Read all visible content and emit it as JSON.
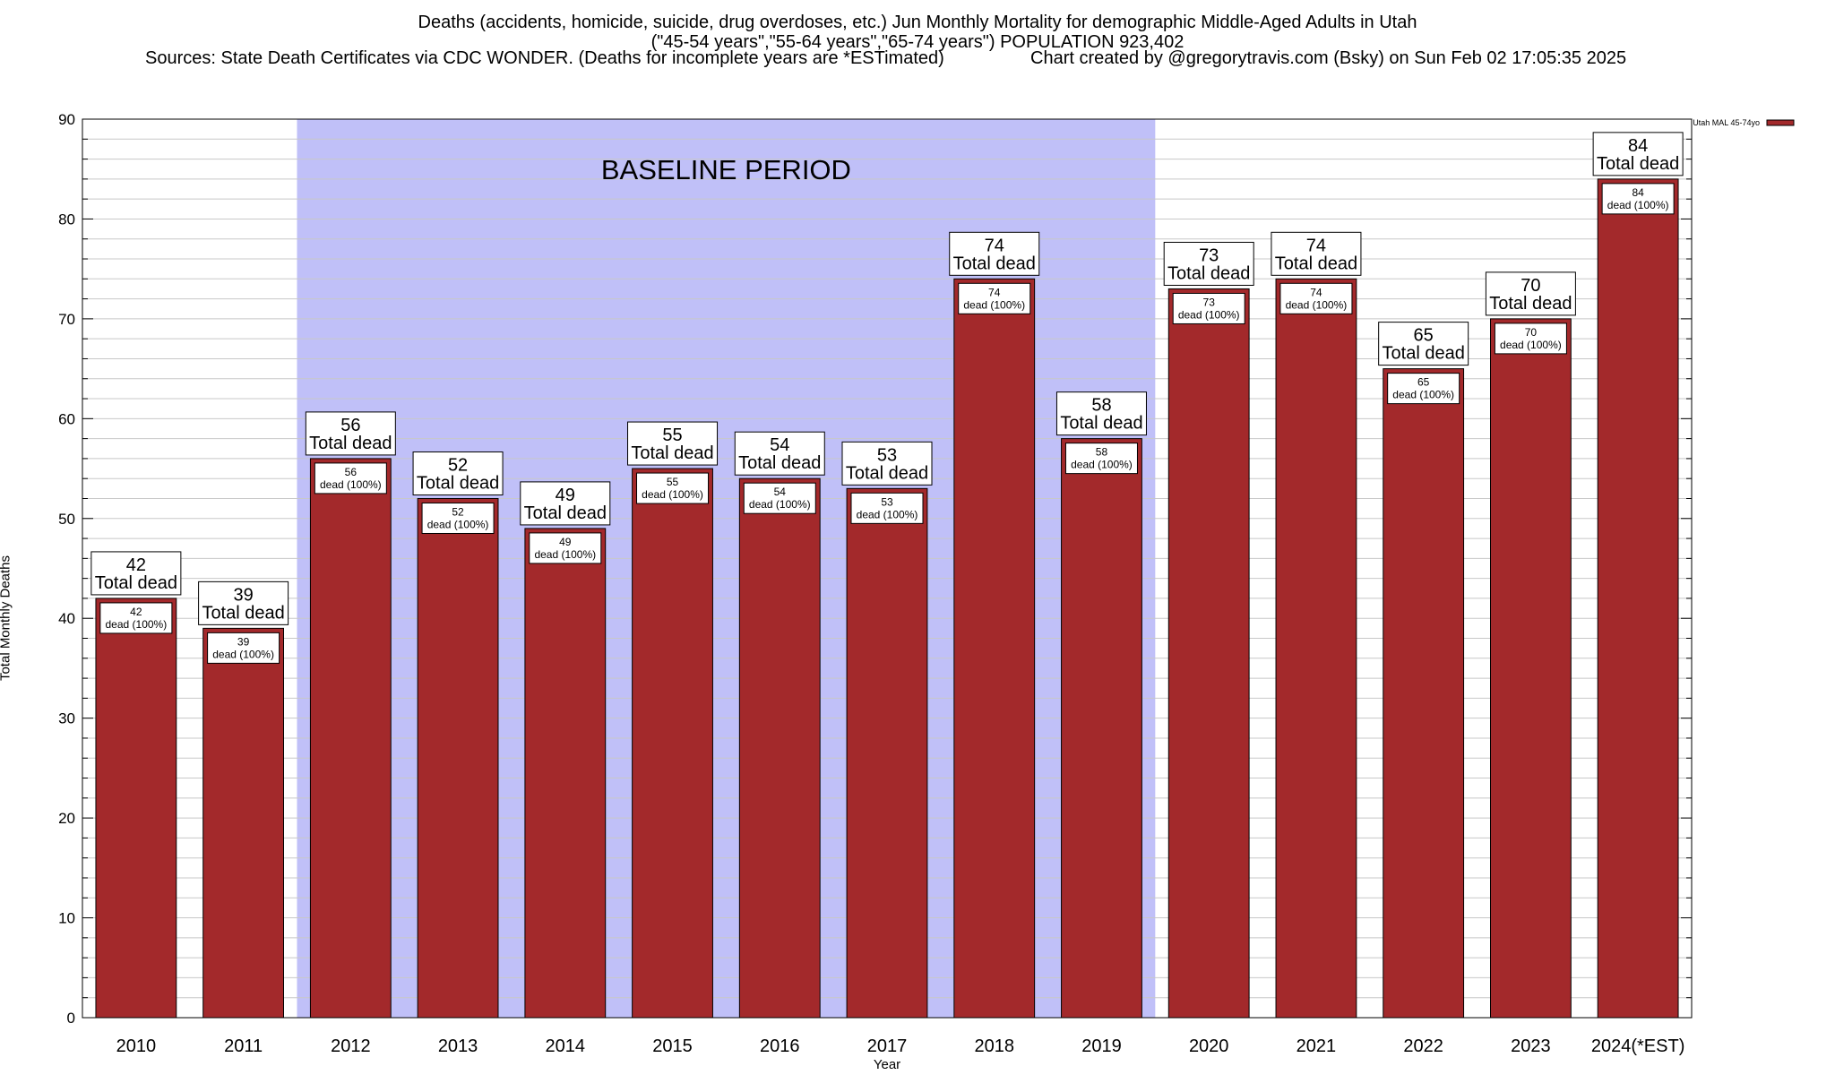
{
  "header": {
    "title_line1": "Deaths (accidents, homicide, suicide, drug overdoses, etc.) Jun Monthly Mortality for demographic Middle-Aged Adults in Utah",
    "title_line2": "(\"45-54 years\",\"55-64 years\",\"65-74 years\") POPULATION 923,402",
    "sources": "Sources: State Death Certificates via CDC WONDER. (Deaths for incomplete years are *ESTimated)",
    "credit": "Chart created by @gregorytravis.com (Bsky) on Sun Feb 02 17:05:35 2025"
  },
  "colors": {
    "bar_fill": "#a3292b",
    "bar_stroke": "#000000",
    "baseline_band": "#c0c0f8",
    "grid": "#c8c8c8"
  },
  "chart_data": {
    "type": "bar",
    "title": "Deaths (accidents, homicide, suicide, drug overdoses, etc.) Jun Monthly Mortality for demographic Middle-Aged Adults in Utah",
    "xlabel": "Year",
    "ylabel": "Total Monthly Deaths",
    "ylim": [
      0,
      90
    ],
    "yticks": [
      0,
      10,
      20,
      30,
      40,
      50,
      60,
      70,
      80,
      90
    ],
    "grid": true,
    "legend_position": "top-right",
    "categories": [
      "2010",
      "2011",
      "2012",
      "2013",
      "2014",
      "2015",
      "2016",
      "2017",
      "2018",
      "2019",
      "2020",
      "2021",
      "2022",
      "2023",
      "2024(*EST)"
    ],
    "series": [
      {
        "name": "Utah MAL 45-74yo",
        "values": [
          42,
          39,
          56,
          52,
          49,
          55,
          54,
          53,
          74,
          58,
          73,
          74,
          65,
          70,
          84
        ]
      }
    ],
    "top_label_suffix": "Total dead",
    "inner_label_suffix": "dead (100%)",
    "annotations": [
      {
        "text": "BASELINE PERIOD",
        "from": "2012",
        "to": "2019"
      }
    ]
  }
}
